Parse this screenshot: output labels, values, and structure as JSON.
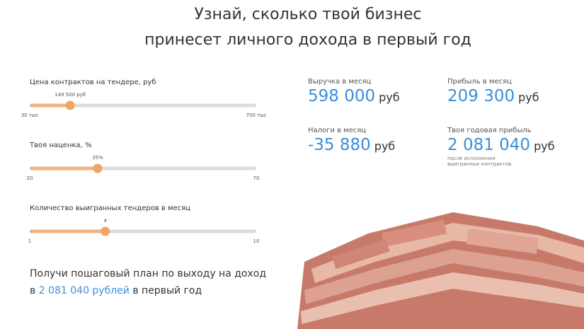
{
  "header": {
    "title_lines": [
      "Узнай, сколько твой бизнес",
      "принесет личного дохода в первый год"
    ]
  },
  "sliders": [
    {
      "label": "Цена контрактов на тендере, руб",
      "value": {
        "value": 149500,
        "label": "149 500 руб"
      },
      "min": {
        "value": 30000,
        "label": "30 тыс"
      },
      "max": {
        "value": 700000,
        "label": "700 тыс"
      }
    },
    {
      "label": "Твоя наценка, %",
      "value": {
        "value": 35,
        "label": "35%"
      },
      "min": 20,
      "max": 70
    },
    {
      "label": "Количество выигранных тендеров в месяц",
      "value": 4,
      "min": 1,
      "max": 10
    }
  ],
  "results": [
    {
      "label": "Выручка в месяц",
      "amount": "598 000",
      "unit": "руб"
    },
    {
      "label": "Прибыль в месяц",
      "amount": "209 300",
      "unit": "руб"
    },
    {
      "label": "Налоги в месяц",
      "amount": "-35 880",
      "unit": "руб"
    },
    {
      "label": "Твоя годовая прибыль",
      "amount": "2 081 040",
      "unit": "руб",
      "note": [
        "после исполнения",
        "выигранных контрактов"
      ]
    }
  ],
  "footer": {
    "line1": "Получи пошаговый план по выходу на доход",
    "prefix": "в",
    "highlight": "2 081 040 рублей",
    "suffix": "в первый год"
  }
}
